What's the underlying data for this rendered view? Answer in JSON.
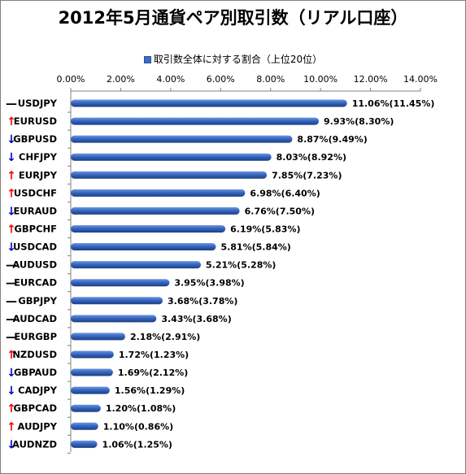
{
  "chart_data": {
    "type": "bar",
    "orientation": "horizontal",
    "title": "2012年5月通貨ペア別取引数（リアル口座）",
    "legend": {
      "label": "取引数全体に対する割合（上位20位）",
      "position": "top"
    },
    "x_ticks": [
      "0.00%",
      "2.00%",
      "4.00%",
      "6.00%",
      "8.00%",
      "10.00%",
      "12.00%",
      "14.00%"
    ],
    "xlim": [
      0,
      14
    ],
    "grid": false,
    "categories": [
      "USDJPY",
      "EURUSD",
      "GBPUSD",
      "CHFJPY",
      "EURJPY",
      "USDCHF",
      "EURAUD",
      "GBPCHF",
      "USDCAD",
      "AUDUSD",
      "EURCAD",
      "GBPJPY",
      "AUDCAD",
      "EURGBP",
      "NZDUSD",
      "GBPAUD",
      "CADJPY",
      "GBPCAD",
      "AUDJPY",
      "AUDNZD"
    ],
    "trends": [
      "—",
      "↑",
      "↓",
      "↓",
      "↑",
      "↑",
      "↓",
      "↑",
      "↓",
      "—",
      "—",
      "—",
      "—",
      "—",
      "↑",
      "↓",
      "↓",
      "↑",
      "↑",
      "↓"
    ],
    "trend_types": [
      "flat",
      "up",
      "down",
      "down",
      "up",
      "up",
      "down",
      "up",
      "down",
      "flat",
      "flat",
      "flat",
      "flat",
      "flat",
      "up",
      "down",
      "down",
      "up",
      "up",
      "down"
    ],
    "values": [
      11.06,
      9.93,
      8.87,
      8.03,
      7.85,
      6.98,
      6.76,
      6.19,
      5.81,
      5.21,
      3.95,
      3.68,
      3.43,
      2.18,
      1.72,
      1.69,
      1.56,
      1.2,
      1.1,
      1.06
    ],
    "labels": [
      "11.06%(11.45%)",
      "9.93%(8.30%)",
      "8.87%(9.49%)",
      "8.03%(8.92%)",
      "7.85%(7.23%)",
      "6.98%(6.40%)",
      "6.76%(7.50%)",
      "6.19%(5.83%)",
      "5.81%(5.84%)",
      "5.21%(5.28%)",
      "3.95%(3.98%)",
      "3.68%(3.78%)",
      "3.43%(3.68%)",
      "2.18%(2.91%)",
      "1.72%(1.23%)",
      "1.69%(2.12%)",
      "1.56%(1.29%)",
      "1.20%(1.08%)",
      "1.10%(0.86%)",
      "1.06%(1.25%)"
    ],
    "colors": {
      "bar": "#2f5fb8",
      "bar_light": "#6e96de",
      "bar_dark": "#1d3f80"
    }
  }
}
